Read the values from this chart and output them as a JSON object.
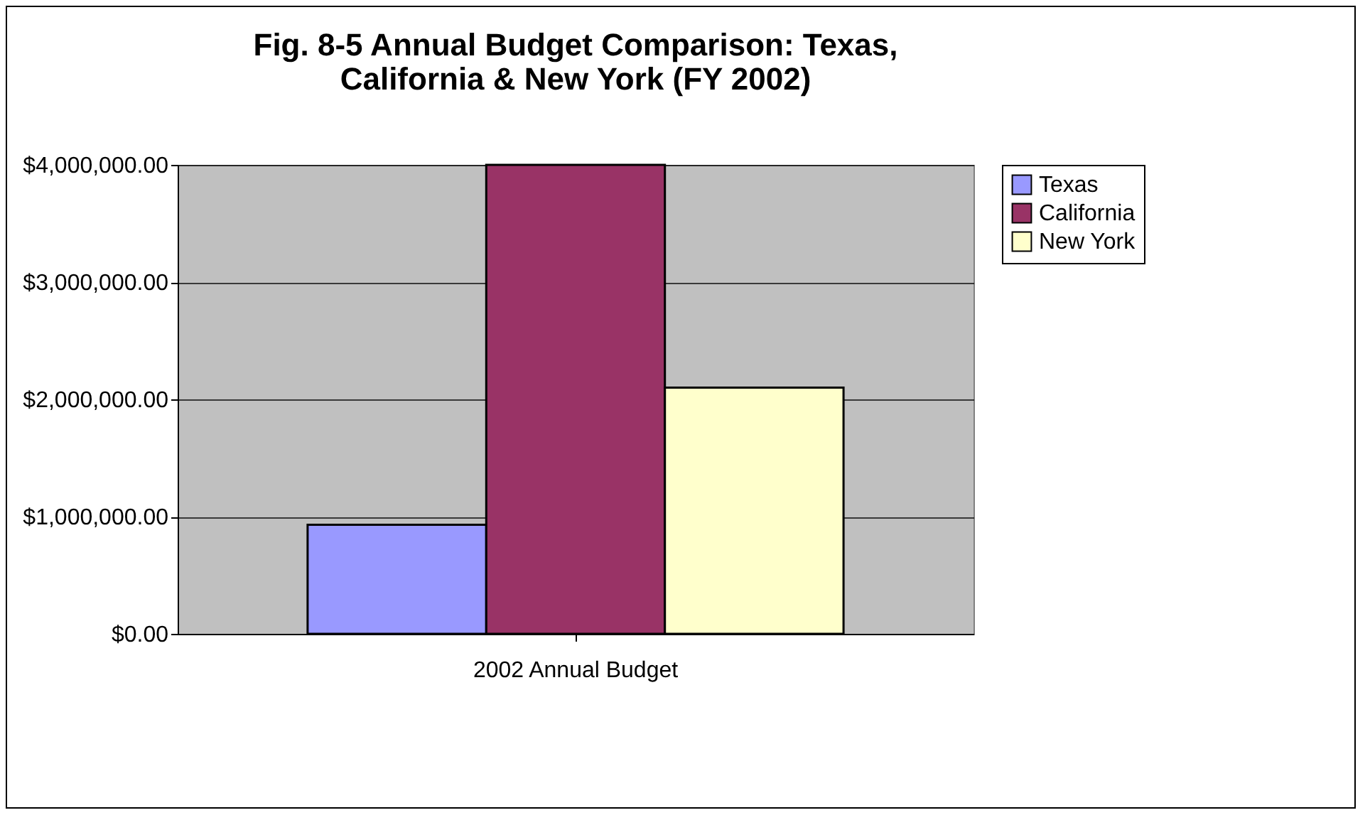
{
  "chart_data": {
    "type": "bar",
    "title": [
      "Fig. 8-5 Annual Budget Comparison: Texas,",
      "California & New York (FY 2002)"
    ],
    "categories": [
      "2002 Annual Budget"
    ],
    "series": [
      {
        "name": "Texas",
        "color": "#9999ff",
        "values": [
          930000
        ]
      },
      {
        "name": "California",
        "color": "#993366",
        "values": [
          4000000
        ]
      },
      {
        "name": "New York",
        "color": "#ffffcc",
        "values": [
          2100000
        ]
      }
    ],
    "ylim": [
      0,
      4000000
    ],
    "yticks": [
      {
        "value": 0,
        "label": "$0.00"
      },
      {
        "value": 1000000,
        "label": "$1,000,000.00"
      },
      {
        "value": 2000000,
        "label": "$2,000,000.00"
      },
      {
        "value": 3000000,
        "label": "$3,000,000.00"
      },
      {
        "value": 4000000,
        "label": "$4,000,000.00"
      }
    ],
    "grid": true,
    "legend": "right"
  }
}
